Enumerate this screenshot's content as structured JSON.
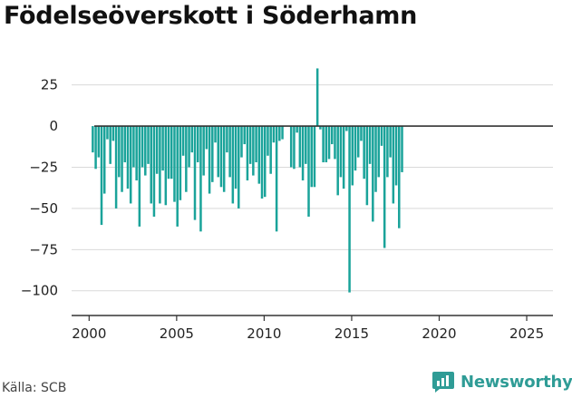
{
  "title": "Födelseöverskott i Söderhamn",
  "source": "Källa: SCB",
  "brand": {
    "name": "Newsworthy",
    "icon": "newsworthy-logo-icon"
  },
  "colors": {
    "bar": "#1aa39a",
    "zero_line": "#333333",
    "grid": "#d9d9d9",
    "axis": "#333333",
    "brand": "#2f9c96"
  },
  "chart_data": {
    "type": "bar",
    "grid": true,
    "ylim": [
      -115,
      38
    ],
    "xlim": [
      1999,
      2026.5
    ],
    "yticks": [
      {
        "value": 25,
        "label": "25"
      },
      {
        "value": 0,
        "label": "0"
      },
      {
        "value": -25,
        "label": "−25"
      },
      {
        "value": -50,
        "label": "−50"
      },
      {
        "value": -75,
        "label": "−75"
      },
      {
        "value": -100,
        "label": "−100"
      }
    ],
    "xticks": [
      {
        "value": 2000,
        "label": "2000"
      },
      {
        "value": 2005,
        "label": "2005"
      },
      {
        "value": 2010,
        "label": "2010"
      },
      {
        "value": 2015,
        "label": "2015"
      },
      {
        "value": 2020,
        "label": "2020"
      },
      {
        "value": 2025,
        "label": "2025"
      }
    ],
    "x_start": 2000.21,
    "x_step": 0.16667,
    "values": [
      -16,
      -26,
      -19,
      -60,
      -41,
      -8,
      -23,
      -9,
      -50,
      -31,
      -40,
      -22,
      -38,
      -47,
      -25,
      -33,
      -61,
      -25,
      -30,
      -23,
      -47,
      -55,
      -29,
      -47,
      -27,
      -48,
      -32,
      -32,
      -46,
      -61,
      -45,
      -18,
      -40,
      -25,
      -16,
      -57,
      -22,
      -64,
      -30,
      -14,
      -41,
      -34,
      -10,
      -31,
      -37,
      -40,
      -16,
      -31,
      -47,
      -38,
      -50,
      -19,
      -11,
      -33,
      -23,
      -30,
      -22,
      -35,
      -44,
      -43,
      -18,
      -29,
      -10,
      -64,
      -9,
      -8,
      0,
      0,
      -25,
      -26,
      -4,
      -25,
      -33,
      -23,
      -55,
      -37,
      -37,
      35,
      -2,
      -22,
      -22,
      -20,
      -11,
      -20,
      -42,
      -31,
      -38,
      -3,
      -101,
      -36,
      -27,
      -19,
      -9,
      -32,
      -48,
      -23,
      -58,
      -40,
      -31,
      -12,
      -74,
      -31,
      -19,
      -47,
      -36,
      -62,
      -28
    ]
  }
}
